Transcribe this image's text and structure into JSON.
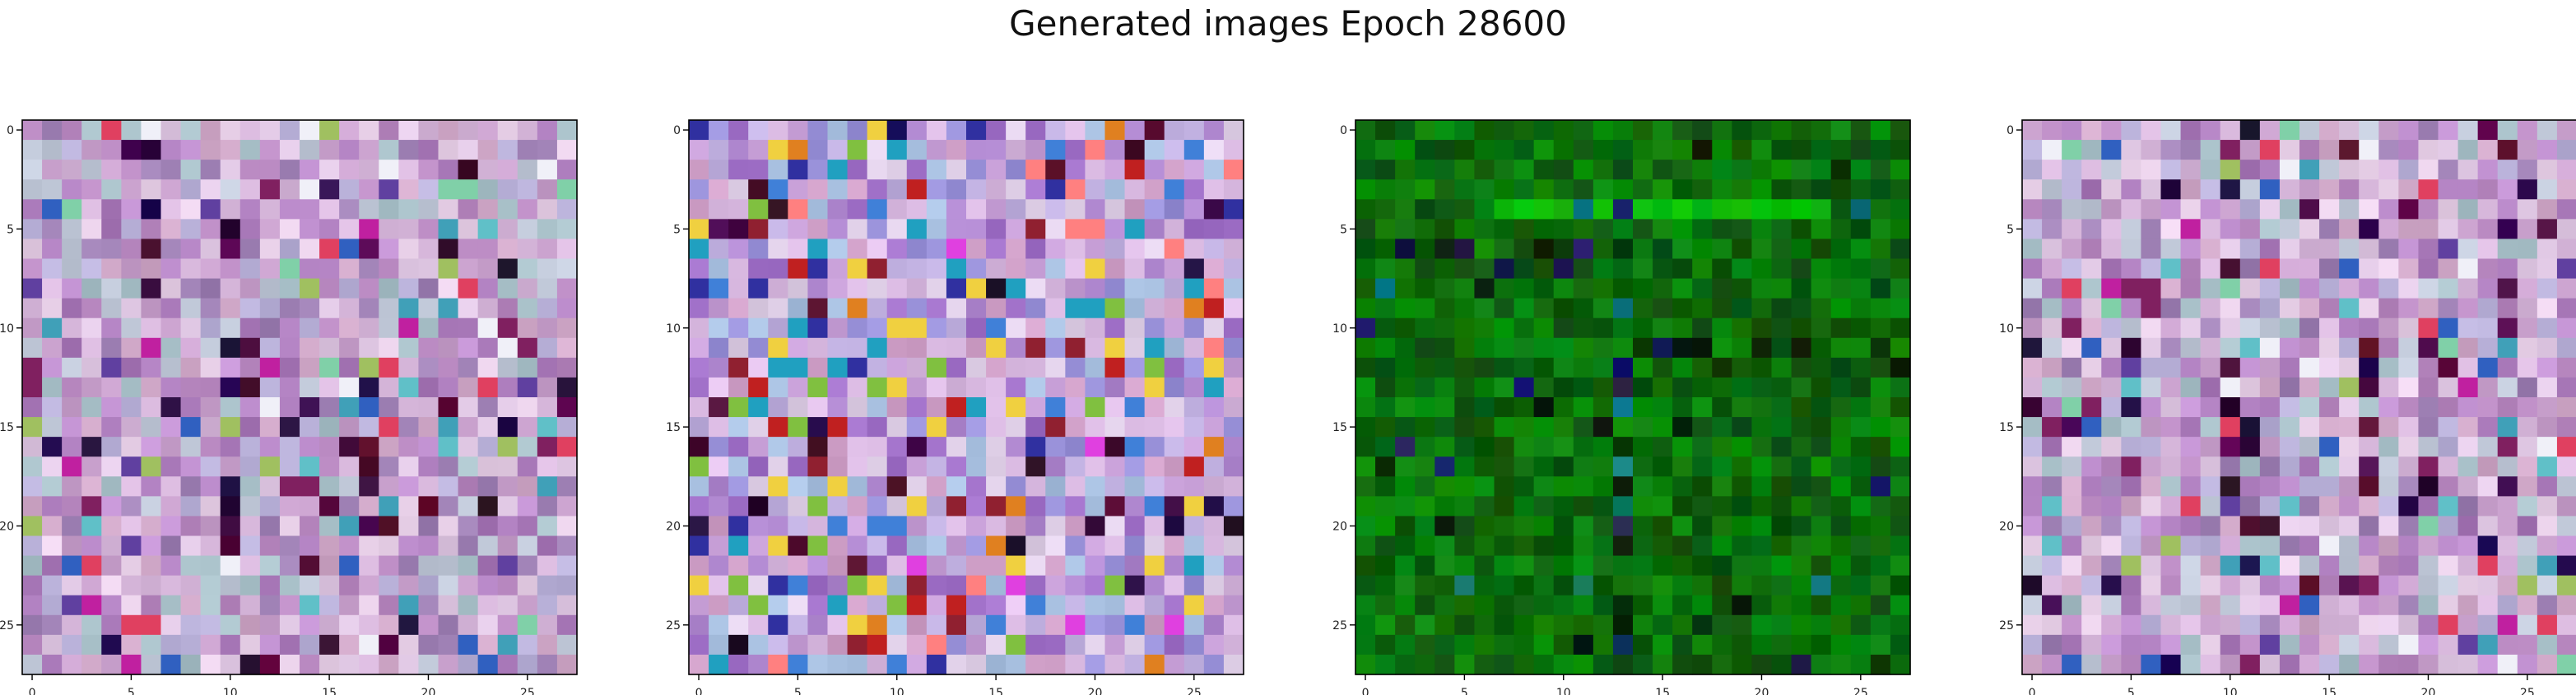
{
  "figure": {
    "title": "Generated images Epoch 28600"
  },
  "chart_data": {
    "type": "heatmap",
    "title": "Generated images Epoch 28600",
    "panels": [
      {
        "palette": "pink-purple",
        "grid": "28x28",
        "xticks": [
          "0",
          "5",
          "10",
          "15",
          "20",
          "25"
        ],
        "yticks": [
          "0",
          "5",
          "10",
          "15",
          "20",
          "25"
        ]
      },
      {
        "palette": "purple-multicolor",
        "grid": "28x28",
        "xticks": [
          "0",
          "5",
          "10",
          "15",
          "20",
          "25"
        ],
        "yticks": [
          "0",
          "5",
          "10",
          "15",
          "20",
          "25"
        ]
      },
      {
        "palette": "green",
        "grid": "28x28",
        "xticks": [
          "0",
          "5",
          "10",
          "15",
          "20",
          "25"
        ],
        "yticks": [
          "0",
          "5",
          "10",
          "15",
          "20",
          "25"
        ]
      },
      {
        "palette": "pink-purple",
        "grid": "28x28",
        "xticks": [
          "0",
          "5",
          "10",
          "15",
          "20",
          "25"
        ],
        "yticks": [
          "0",
          "5",
          "10",
          "15",
          "20",
          "25"
        ]
      }
    ],
    "xlim": [
      -0.5,
      27.5
    ],
    "ylim": [
      27.5,
      -0.5
    ],
    "colors": {
      "pink_base": "#c8a0cc",
      "green_base": "#0a6a10",
      "dark_pixel": "#100818"
    }
  }
}
